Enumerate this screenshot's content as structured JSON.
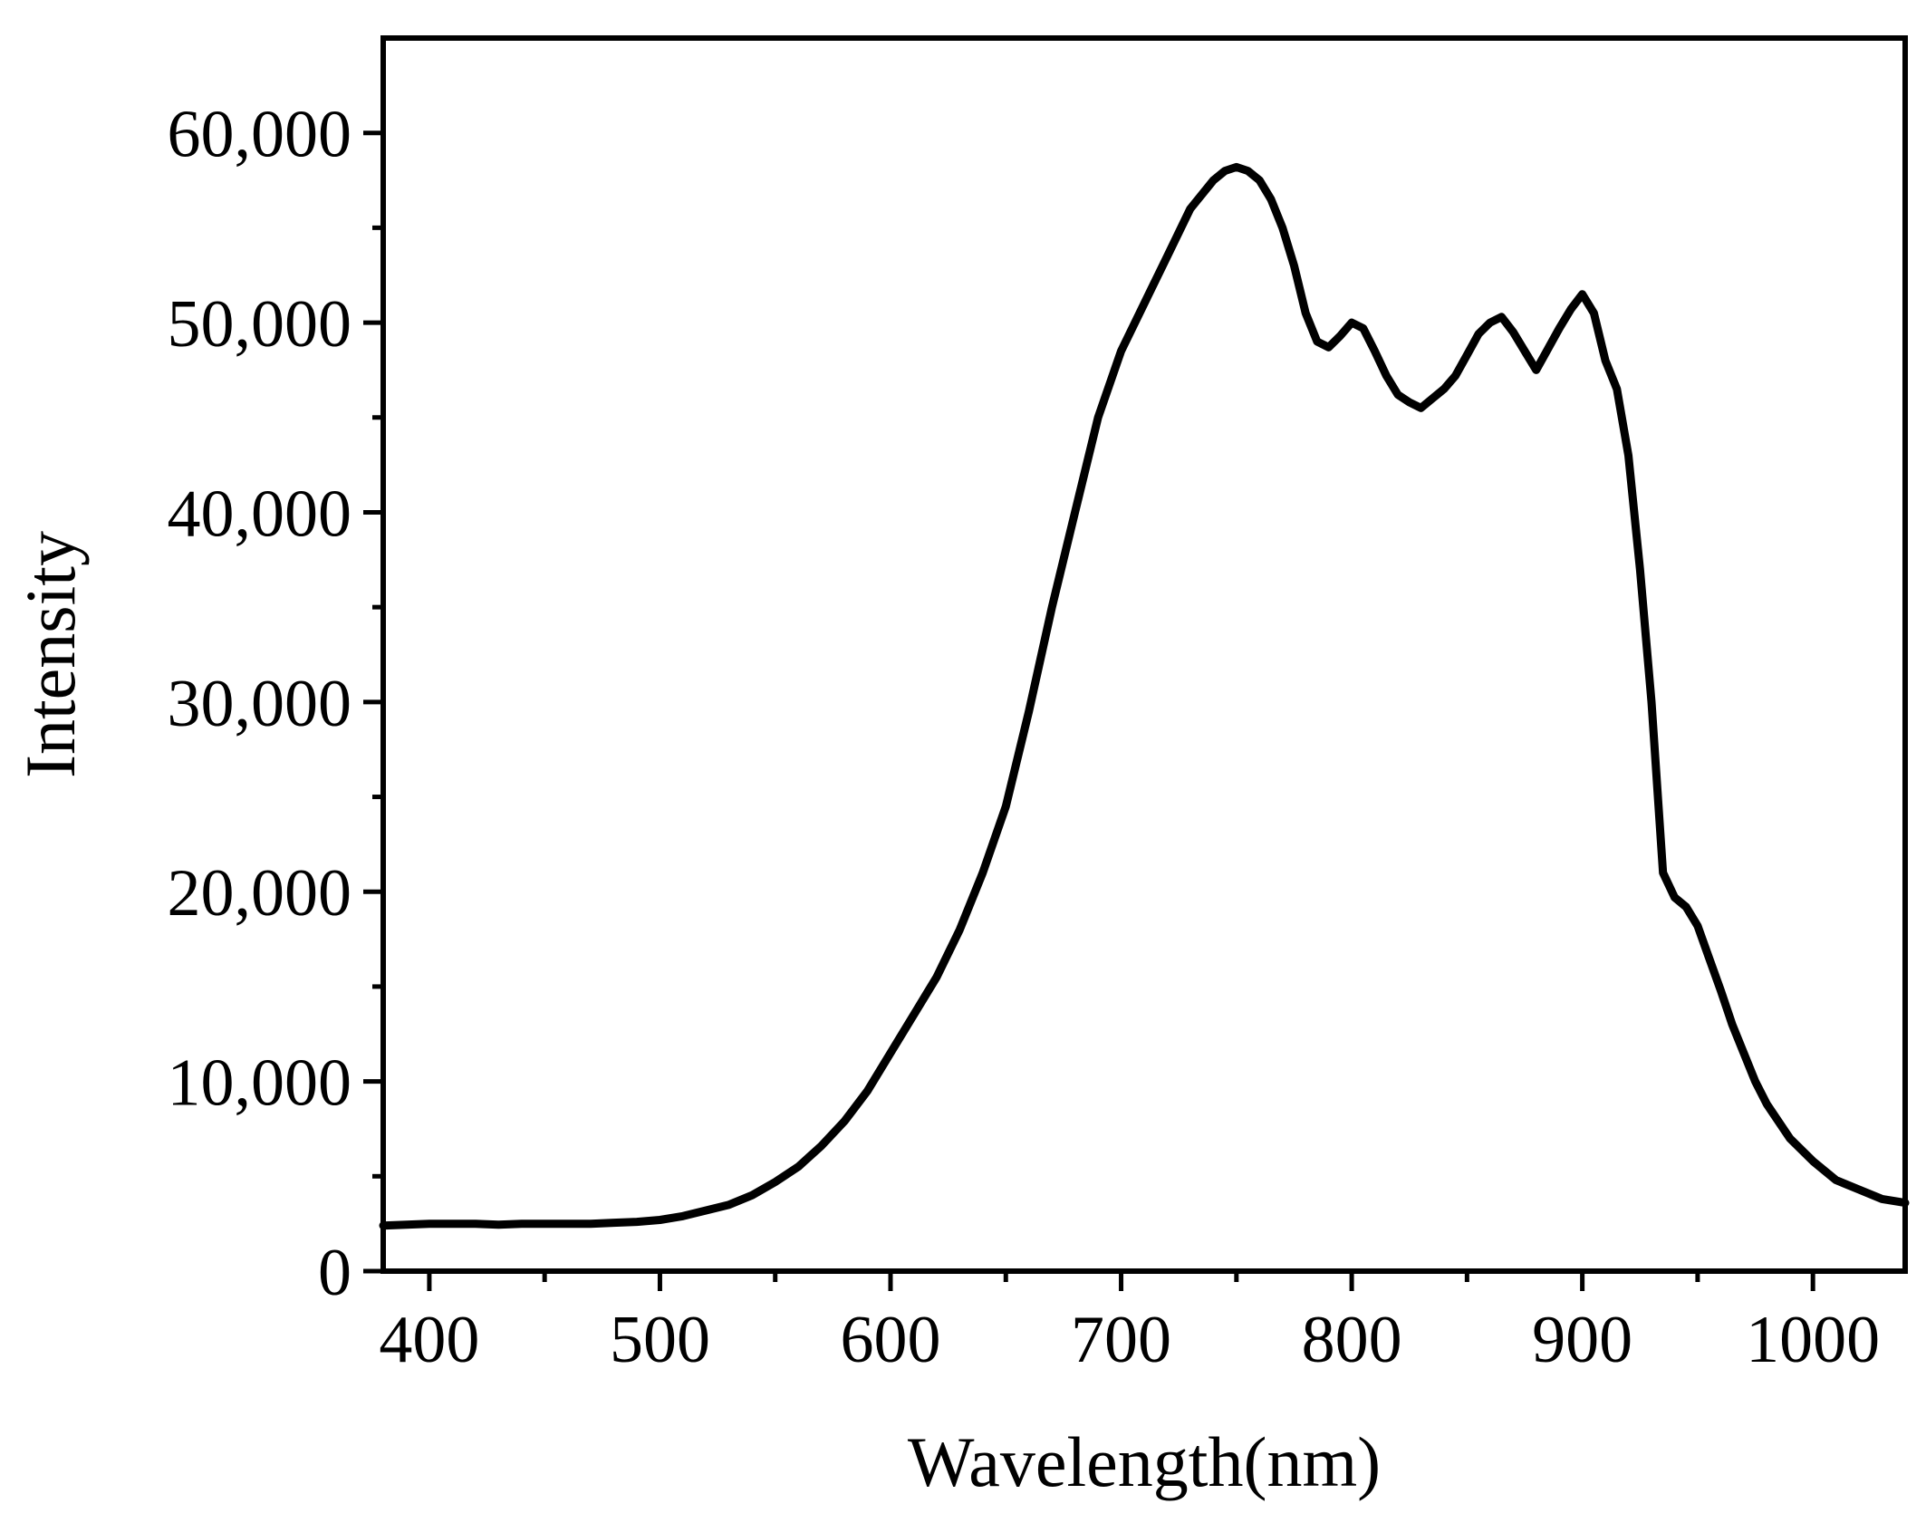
{
  "chart_data": {
    "type": "line",
    "title": "",
    "xlabel": "Wavelength(nm)",
    "ylabel": "Intensity",
    "xlim": [
      380,
      1040
    ],
    "ylim": [
      0,
      65000
    ],
    "x_ticks": [
      400,
      500,
      600,
      700,
      800,
      900,
      1000
    ],
    "x_tick_labels": [
      "400",
      "500",
      "600",
      "700",
      "800",
      "900",
      "1000"
    ],
    "x_minor_ticks": [
      450,
      550,
      650,
      750,
      850,
      950
    ],
    "y_ticks": [
      0,
      10000,
      20000,
      30000,
      40000,
      50000,
      60000
    ],
    "y_tick_labels": [
      "0",
      "10,000",
      "20,000",
      "30,000",
      "40,000",
      "50,000",
      "60,000"
    ],
    "y_minor_ticks": [
      5000,
      15000,
      25000,
      35000,
      45000,
      55000
    ],
    "grid": false,
    "legend": false,
    "line_color": "#000000",
    "series": [
      {
        "name": "Intensity",
        "x": [
          380,
          390,
          400,
          410,
          420,
          430,
          440,
          450,
          460,
          470,
          480,
          490,
          500,
          510,
          520,
          530,
          540,
          550,
          560,
          570,
          580,
          590,
          600,
          610,
          620,
          630,
          640,
          650,
          660,
          670,
          680,
          690,
          700,
          710,
          720,
          730,
          740,
          745,
          750,
          755,
          760,
          765,
          770,
          775,
          780,
          785,
          790,
          795,
          800,
          805,
          810,
          815,
          820,
          825,
          830,
          835,
          840,
          845,
          850,
          855,
          860,
          865,
          870,
          875,
          880,
          885,
          890,
          895,
          900,
          905,
          910,
          915,
          920,
          925,
          930,
          935,
          940,
          945,
          950,
          955,
          960,
          965,
          970,
          975,
          980,
          990,
          1000,
          1010,
          1020,
          1030,
          1040
        ],
        "values": [
          2400,
          2450,
          2500,
          2500,
          2500,
          2450,
          2500,
          2500,
          2500,
          2500,
          2550,
          2600,
          2700,
          2900,
          3200,
          3500,
          4000,
          4700,
          5500,
          6600,
          7900,
          9500,
          11500,
          13500,
          15500,
          18000,
          21000,
          24500,
          29500,
          35000,
          40000,
          45000,
          48500,
          51000,
          53500,
          56000,
          57500,
          58000,
          58200,
          58000,
          57500,
          56500,
          55000,
          53000,
          50500,
          49000,
          48700,
          49300,
          50000,
          49700,
          48500,
          47200,
          46200,
          45800,
          45500,
          46000,
          46500,
          47200,
          48300,
          49400,
          50000,
          50300,
          49500,
          48500,
          47500,
          48600,
          49700,
          50700,
          51500,
          50500,
          48000,
          46500,
          43000,
          37000,
          30000,
          21000,
          19700,
          19200,
          18200,
          16500,
          14800,
          13000,
          11500,
          10000,
          8800,
          7000,
          5800,
          4800,
          4300,
          3800,
          3600
        ]
      }
    ]
  }
}
